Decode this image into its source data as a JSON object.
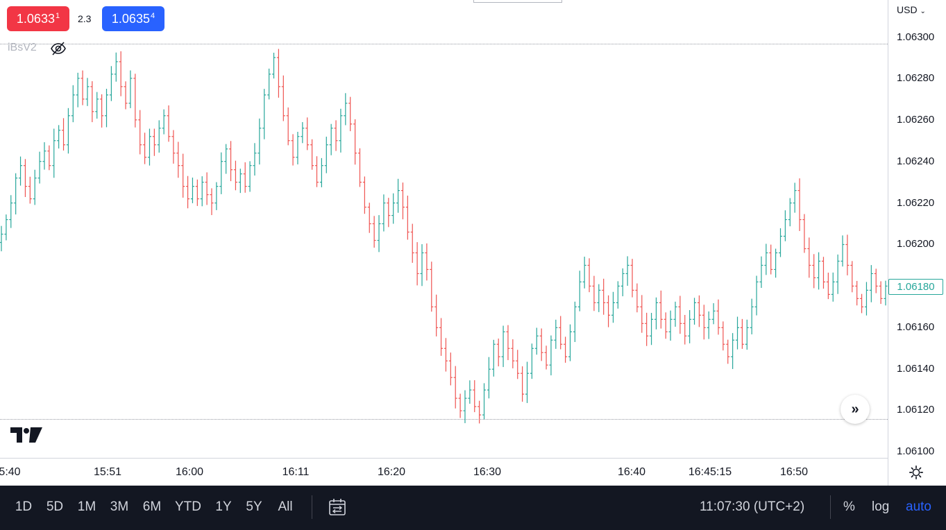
{
  "quote": {
    "bid_main": "1.0633",
    "bid_sup": "1",
    "spread": "2.3",
    "ask_main": "1.0635",
    "ask_sup": "4"
  },
  "indicator": {
    "name": "iBsV2"
  },
  "colors": {
    "up": "#26a69a",
    "down": "#ef5350",
    "bid": "#f23645",
    "ask": "#2962ff",
    "toolbar_bg": "#131722"
  },
  "price_axis": {
    "currency": "USD",
    "ticks": [
      "1.06300",
      "1.06280",
      "1.06260",
      "1.06240",
      "1.06220",
      "1.06200",
      "1.06180",
      "1.06160",
      "1.06140",
      "1.06120",
      "1.06100"
    ],
    "last_price": "1.06180"
  },
  "time_axis": {
    "ticks": [
      "5:40",
      "15:51",
      "16:00",
      "16:11",
      "16:20",
      "16:30",
      "16:40",
      "16:45:15",
      "16:50"
    ]
  },
  "toolbar": {
    "ranges": [
      "1D",
      "5D",
      "1M",
      "3M",
      "6M",
      "YTD",
      "1Y",
      "5Y",
      "All"
    ],
    "clock": "11:07:30 (UTC+2)",
    "percent_label": "%",
    "log_label": "log",
    "auto_label": "auto"
  },
  "chart_data": {
    "type": "ohlc",
    "instrument_quote": "USD",
    "ylim": [
      1.061,
      1.0631
    ],
    "y_ticks": [
      1.063,
      1.0628,
      1.0626,
      1.0624,
      1.0622,
      1.062,
      1.0618,
      1.0616,
      1.0614,
      1.0612,
      1.061
    ],
    "x_tick_labels": [
      "5:40",
      "15:51",
      "16:00",
      "16:11",
      "16:20",
      "16:30",
      "16:40",
      "16:45:15",
      "16:50"
    ],
    "horizontal_lines": [
      1.06296,
      1.06115
    ],
    "last_price": 1.0618,
    "bid": 1.06331,
    "ask": 1.06354,
    "closes": [
      1.06205,
      1.06212,
      1.0622,
      1.06232,
      1.06238,
      1.06228,
      1.06222,
      1.06232,
      1.0624,
      1.06245,
      1.06238,
      1.0625,
      1.06255,
      1.06248,
      1.06262,
      1.06272,
      1.0628,
      1.0627,
      1.06276,
      1.06264,
      1.0627,
      1.06262,
      1.06272,
      1.06282,
      1.06288,
      1.06276,
      1.06268,
      1.0628,
      1.0626,
      1.06248,
      1.06242,
      1.06252,
      1.06248,
      1.06256,
      1.06262,
      1.06252,
      1.06244,
      1.06238,
      1.06228,
      1.06222,
      1.06228,
      1.06222,
      1.0623,
      1.06224,
      1.0622,
      1.06228,
      1.0624,
      1.06246,
      1.06236,
      1.0623,
      1.06234,
      1.06228,
      1.06238,
      1.06244,
      1.06256,
      1.06272,
      1.06282,
      1.0629,
      1.06276,
      1.06262,
      1.0625,
      1.06242,
      1.06252,
      1.06256,
      1.06248,
      1.06238,
      1.0623,
      1.06238,
      1.06248,
      1.06256,
      1.0625,
      1.06262,
      1.06268,
      1.06258,
      1.06244,
      1.0623,
      1.06218,
      1.0621,
      1.06202,
      1.0621,
      1.0622,
      1.06214,
      1.0622,
      1.06226,
      1.06218,
      1.06206,
      1.06196,
      1.06186,
      1.06196,
      1.06188,
      1.0617,
      1.0616,
      1.0615,
      1.06144,
      1.06136,
      1.06126,
      1.0612,
      1.06126,
      1.0613,
      1.06122,
      1.06118,
      1.0613,
      1.0614,
      1.06152,
      1.06146,
      1.06158,
      1.0615,
      1.06144,
      1.06138,
      1.06128,
      1.06138,
      1.0615,
      1.06156,
      1.06148,
      1.06142,
      1.06154,
      1.0616,
      1.06152,
      1.06146,
      1.06158,
      1.0617,
      1.06182,
      1.0619,
      1.0618,
      1.06172,
      1.06178,
      1.06172,
      1.06166,
      1.06172,
      1.0618,
      1.06186,
      1.0619,
      1.06178,
      1.0617,
      1.06162,
      1.06156,
      1.06164,
      1.06172,
      1.06164,
      1.06158,
      1.06164,
      1.0617,
      1.06162,
      1.06156,
      1.06164,
      1.06172,
      1.06166,
      1.0616,
      1.06164,
      1.06168,
      1.0616,
      1.06152,
      1.06146,
      1.06154,
      1.0616,
      1.06152,
      1.0616,
      1.0617,
      1.06182,
      1.0619,
      1.06196,
      1.06188,
      1.06196,
      1.06204,
      1.06212,
      1.0622,
      1.06226,
      1.06212,
      1.06198,
      1.0619,
      1.06184,
      1.06192,
      1.06182,
      1.06176,
      1.06182,
      1.06192,
      1.062,
      1.0619,
      1.0618,
      1.06174,
      1.0617,
      1.06178,
      1.06186,
      1.0618,
      1.06174,
      1.0618
    ]
  }
}
